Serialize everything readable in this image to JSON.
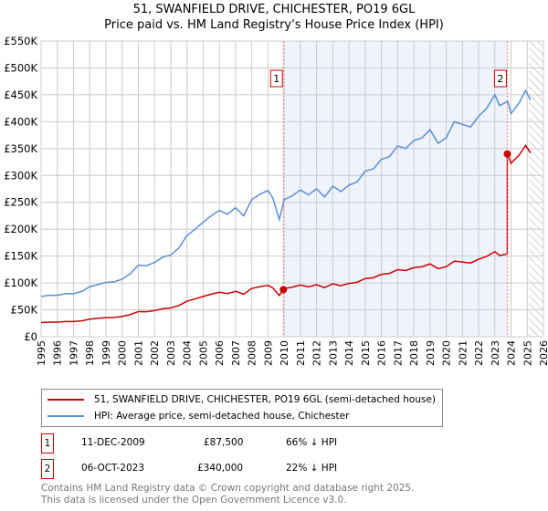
{
  "chart_data": {
    "type": "line",
    "title": "51, SWANFIELD DRIVE, CHICHESTER, PO19 6GL",
    "subtitle": "Price paid vs. HM Land Registry's House Price Index (HPI)",
    "xlim": [
      1995,
      2026
    ],
    "ylim": [
      0,
      550000
    ],
    "yticks": [
      0,
      50000,
      100000,
      150000,
      200000,
      250000,
      300000,
      350000,
      400000,
      450000,
      500000,
      550000
    ],
    "ytick_labels": [
      "£0",
      "£50K",
      "£100K",
      "£150K",
      "£200K",
      "£250K",
      "£300K",
      "£350K",
      "£400K",
      "£450K",
      "£500K",
      "£550K"
    ],
    "xticks": [
      "1995",
      "1996",
      "1997",
      "1998",
      "1999",
      "2000",
      "2001",
      "2002",
      "2003",
      "2004",
      "2005",
      "2006",
      "2007",
      "2008",
      "2009",
      "2010",
      "2011",
      "2012",
      "2013",
      "2014",
      "2015",
      "2016",
      "2017",
      "2018",
      "2019",
      "2020",
      "2021",
      "2022",
      "2023",
      "2024",
      "2025",
      "2026"
    ],
    "grid": true,
    "forecast_hatch_from": 2025.1,
    "hpi_series": {
      "name": "HPI: Average price, semi-detached house, Chichester",
      "color": "#5b8fd6",
      "x": [
        1995,
        1995.5,
        1996,
        1996.5,
        1997,
        1997.5,
        1998,
        1998.5,
        1999,
        1999.5,
        2000,
        2000.5,
        2001,
        2001.5,
        2002,
        2002.5,
        2003,
        2003.5,
        2004,
        2004.5,
        2005,
        2005.5,
        2006,
        2006.5,
        2007,
        2007.5,
        2008,
        2008.5,
        2009,
        2009.3,
        2009.7,
        2010,
        2010.5,
        2011,
        2011.5,
        2012,
        2012.5,
        2013,
        2013.5,
        2014,
        2014.5,
        2015,
        2015.5,
        2016,
        2016.5,
        2017,
        2017.5,
        2018,
        2018.5,
        2019,
        2019.5,
        2020,
        2020.5,
        2021,
        2021.5,
        2022,
        2022.5,
        2023,
        2023.3,
        2023.8,
        2024,
        2024.5,
        2024.9,
        2025.2
      ],
      "y": [
        75000,
        77000,
        77000,
        80000,
        80000,
        84000,
        93000,
        97000,
        101000,
        102000,
        107000,
        117000,
        133000,
        132000,
        138000,
        148000,
        152000,
        165000,
        188000,
        200000,
        213000,
        225000,
        235000,
        228000,
        240000,
        225000,
        255000,
        265000,
        272000,
        258000,
        218000,
        255000,
        262000,
        273000,
        264000,
        275000,
        260000,
        280000,
        270000,
        282000,
        288000,
        308000,
        312000,
        330000,
        335000,
        355000,
        350000,
        365000,
        370000,
        385000,
        360000,
        370000,
        400000,
        395000,
        390000,
        410000,
        425000,
        450000,
        430000,
        438000,
        415000,
        435000,
        458000,
        440000
      ]
    },
    "price_series": {
      "name": "51, SWANFIELD DRIVE, CHICHESTER, PO19 6GL (semi-detached house)",
      "color": "#cc0000"
    },
    "sales": [
      {
        "id": "1",
        "date": "11-DEC-2009",
        "x": 2009.95,
        "price": 87500,
        "price_label": "£87,500",
        "hpi_diff": "66% ↓ HPI"
      },
      {
        "id": "2",
        "date": "06-OCT-2023",
        "x": 2023.77,
        "price": 340000,
        "price_label": "£340,000",
        "hpi_diff": "22% ↓ HPI"
      }
    ],
    "footer": [
      "Contains HM Land Registry data © Crown copyright and database right 2025.",
      "This data is licensed under the Open Government Licence v3.0."
    ]
  }
}
